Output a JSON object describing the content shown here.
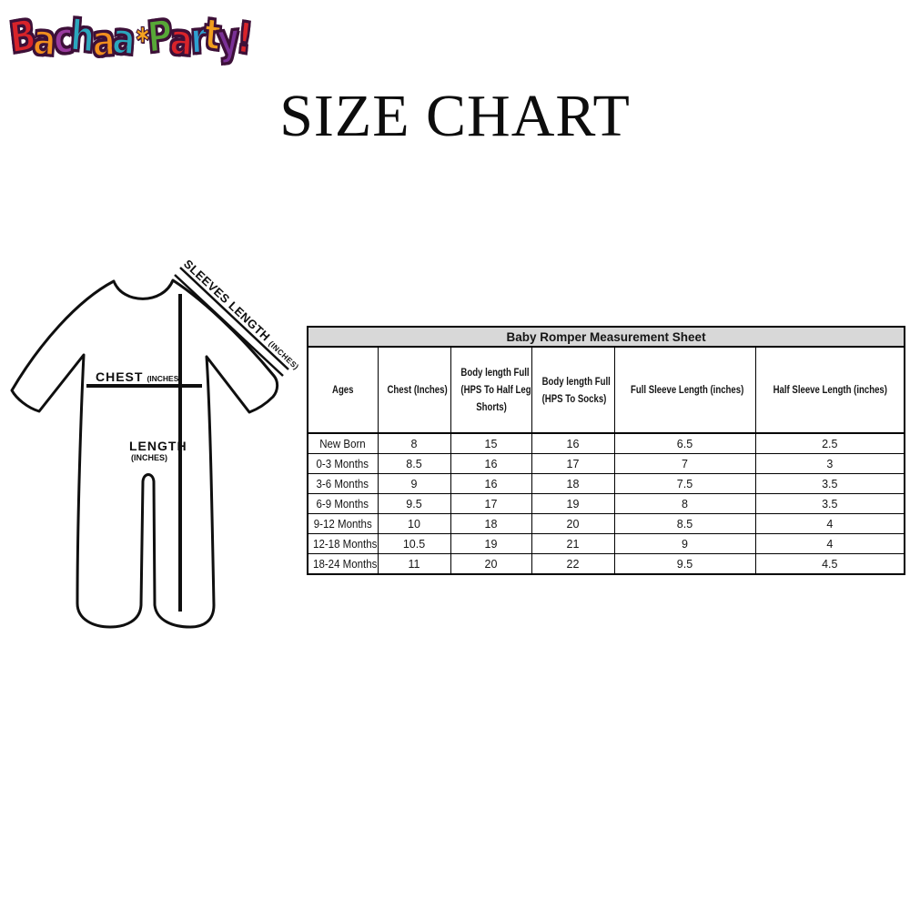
{
  "logo": {
    "name": "Bachaa Party!",
    "outline_color": "#3d1038",
    "letters": [
      {
        "ch": "B",
        "color": "#d8232a"
      },
      {
        "ch": "a",
        "color": "#f28e1e"
      },
      {
        "ch": "c",
        "color": "#993a9e"
      },
      {
        "ch": "h",
        "color": "#2ba7bd"
      },
      {
        "ch": "a",
        "color": "#f28e1e"
      },
      {
        "ch": "a",
        "color": "#2ba7bd"
      },
      {
        "ch": "✱",
        "color": "#f5a31f",
        "small": true
      },
      {
        "ch": "P",
        "color": "#57a737"
      },
      {
        "ch": "a",
        "color": "#d8232a"
      },
      {
        "ch": "r",
        "color": "#2e9fd0"
      },
      {
        "ch": "t",
        "color": "#f09e1d"
      },
      {
        "ch": "y",
        "color": "#7a3096"
      },
      {
        "ch": "!",
        "color": "#d8232a"
      }
    ]
  },
  "title": "SIZE CHART",
  "diagram": {
    "sleeves_label": "SLEEVES LENGTH",
    "sleeves_unit": "(INCHES)",
    "chest_label": "CHEST",
    "chest_unit": "(INCHES)",
    "length_label": "LENGTH",
    "length_unit": "(INCHES)"
  },
  "table": {
    "title": "Baby Romper Measurement Sheet",
    "headers": [
      {
        "lines": [
          "Ages"
        ]
      },
      {
        "lines": [
          "Chest (Inches)"
        ]
      },
      {
        "lines": [
          "Body length Full",
          "(HPS To Half Leg",
          "Shorts)"
        ]
      },
      {
        "lines": [
          "Body length Full",
          "(HPS To Socks)"
        ]
      },
      {
        "lines": [
          "Full Sleeve Length (inches)"
        ]
      },
      {
        "lines": [
          "Half Sleeve Length (inches)"
        ]
      }
    ]
  },
  "chart_data": {
    "type": "table",
    "title": "Baby Romper Measurement Sheet",
    "columns": [
      "Ages",
      "Chest (Inches)",
      "Body length Full (HPS To Half Leg Shorts)",
      "Body length Full (HPS To Socks)",
      "Full Sleeve Length (inches)",
      "Half Sleeve Length (inches)"
    ],
    "rows": [
      [
        "New Born",
        8,
        15,
        16,
        6.5,
        2.5
      ],
      [
        "0-3 Months",
        8.5,
        16,
        17,
        7,
        3
      ],
      [
        "3-6 Months",
        9,
        16,
        18,
        7.5,
        3.5
      ],
      [
        "6-9 Months",
        9.5,
        17,
        19,
        8,
        3.5
      ],
      [
        "9-12 Months",
        10,
        18,
        20,
        8.5,
        4
      ],
      [
        "12-18 Months",
        10.5,
        19,
        21,
        9,
        4
      ],
      [
        "18-24 Months",
        11,
        20,
        22,
        9.5,
        4.5
      ]
    ],
    "units": "inches"
  }
}
